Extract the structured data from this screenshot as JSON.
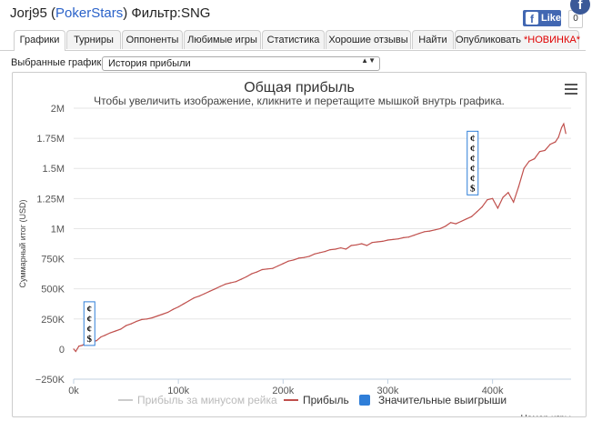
{
  "header": {
    "player": "Jorj95",
    "open_paren": " (",
    "site": "PokerStars",
    "close_paren": ")",
    "filter": " Фильтр:SNG"
  },
  "facebook": {
    "like_label": "Like",
    "count": "0",
    "badge_letter": "f",
    "f_letter": "f"
  },
  "tabs": [
    {
      "label": "Графики",
      "active": true
    },
    {
      "label": "Турниры"
    },
    {
      "label": "Оппоненты"
    },
    {
      "label": "Любимые игры"
    },
    {
      "label": "Статистика"
    },
    {
      "label": "Хорошие отзывы"
    },
    {
      "label": "Найти"
    },
    {
      "label": "Опубликовать",
      "badge": "*НОВИНКА*"
    }
  ],
  "selector": {
    "label": "Выбранные графики:",
    "value": "История прибыли",
    "arrows": "▲▼"
  },
  "colors": {
    "profit_line": "#c0504d",
    "big_wins": "#2f7ed8",
    "minus_rake": "#cccccc",
    "grid": "#e6e6e6"
  },
  "chart_data": {
    "type": "line",
    "title": "Общая прибыль",
    "subtitle": "Чтобы увеличить изображение, кликните и перетащите мышкой внутрь графика.",
    "ylabel": "Суммарный итог (USD)",
    "xlabel": "Номер игры",
    "xlim": [
      0,
      475000
    ],
    "ylim": [
      -250000,
      2000000
    ],
    "x_ticks": [
      0,
      100000,
      200000,
      300000,
      400000
    ],
    "x_tick_labels": [
      "0k",
      "100k",
      "200k",
      "300k",
      "400k"
    ],
    "y_ticks": [
      -250000,
      0,
      250000,
      500000,
      750000,
      1000000,
      1250000,
      1500000,
      1750000,
      2000000
    ],
    "y_tick_labels": [
      "−250K",
      "0",
      "250K",
      "500K",
      "750K",
      "1M",
      "1.25M",
      "1.5M",
      "1.75M",
      "2M"
    ],
    "legend": [
      "Прибыль за минусом рейка",
      "Прибыль",
      "Значительные выигрыши"
    ],
    "legend_position": "bottom",
    "grid": true,
    "series": [
      {
        "name": "Прибыль",
        "x": [
          0,
          2000,
          5000,
          8000,
          12000,
          15000,
          18000,
          22000,
          26000,
          30000,
          35000,
          40000,
          45000,
          50000,
          55000,
          60000,
          65000,
          70000,
          75000,
          80000,
          85000,
          90000,
          95000,
          100000,
          105000,
          110000,
          115000,
          120000,
          125000,
          130000,
          135000,
          140000,
          145000,
          150000,
          155000,
          160000,
          165000,
          170000,
          175000,
          180000,
          185000,
          190000,
          195000,
          200000,
          205000,
          210000,
          215000,
          220000,
          225000,
          230000,
          235000,
          240000,
          245000,
          250000,
          255000,
          260000,
          265000,
          270000,
          275000,
          280000,
          285000,
          290000,
          295000,
          300000,
          305000,
          310000,
          315000,
          320000,
          325000,
          330000,
          335000,
          340000,
          345000,
          350000,
          355000,
          360000,
          365000,
          370000,
          375000,
          380000,
          385000,
          390000,
          395000,
          400000,
          405000,
          410000,
          415000,
          420000,
          425000,
          430000,
          435000,
          440000,
          445000,
          450000,
          455000,
          460000,
          463000,
          466000,
          468000,
          470000
        ],
        "y": [
          0,
          -20000,
          25000,
          30000,
          50000,
          45000,
          60000,
          70000,
          100000,
          115000,
          135000,
          150000,
          165000,
          195000,
          210000,
          230000,
          245000,
          250000,
          260000,
          275000,
          290000,
          305000,
          330000,
          350000,
          375000,
          400000,
          425000,
          440000,
          460000,
          480000,
          500000,
          520000,
          540000,
          550000,
          560000,
          580000,
          600000,
          625000,
          640000,
          660000,
          665000,
          670000,
          690000,
          710000,
          730000,
          740000,
          755000,
          760000,
          770000,
          790000,
          800000,
          810000,
          825000,
          830000,
          840000,
          830000,
          860000,
          865000,
          875000,
          860000,
          885000,
          890000,
          895000,
          905000,
          910000,
          915000,
          925000,
          930000,
          945000,
          960000,
          975000,
          980000,
          990000,
          1000000,
          1020000,
          1050000,
          1040000,
          1060000,
          1080000,
          1100000,
          1140000,
          1180000,
          1240000,
          1250000,
          1170000,
          1260000,
          1300000,
          1220000,
          1350000,
          1500000,
          1560000,
          1580000,
          1640000,
          1650000,
          1700000,
          1720000,
          1760000,
          1840000,
          1870000,
          1790000
        ]
      },
      {
        "name": "Значительные выигрыши",
        "x": [
          15000,
          381000
        ],
        "y": [
          0,
          1250000
        ],
        "glyphs": [
          "¢",
          "¢",
          "¢",
          "$"
        ],
        "glyphs_large": [
          "¢",
          "¢",
          "¢",
          "¢",
          "¢",
          "$"
        ]
      }
    ]
  }
}
